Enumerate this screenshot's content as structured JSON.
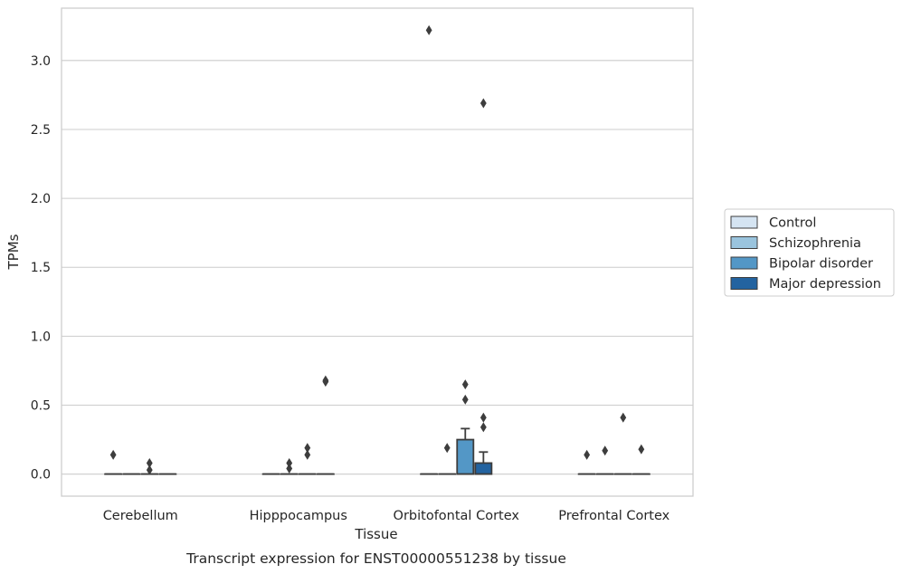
{
  "chart_data": {
    "type": "box",
    "title": "",
    "caption": "Transcript expression for ENST00000551238 by tissue",
    "xlabel": "Tissue",
    "ylabel": "TPMs",
    "ylim": [
      -0.16,
      3.38
    ],
    "yticks": [
      0.0,
      0.5,
      1.0,
      1.5,
      2.0,
      2.5,
      3.0
    ],
    "ytick_labels": [
      "0.0",
      "0.5",
      "1.0",
      "1.5",
      "2.0",
      "2.5",
      "3.0"
    ],
    "grid": "horizontal",
    "legend_position": "right",
    "categories": [
      "Cerebellum",
      "Hipppocampus",
      "Orbitofontal Cortex",
      "Prefrontal Cortex"
    ],
    "series": [
      {
        "name": "Control",
        "color": "#d5e4f2",
        "boxes": [
          {
            "q1": 0,
            "median": 0,
            "q3": 0,
            "whisker_low": 0,
            "whisker_high": 0,
            "outliers": [
              0.14
            ]
          },
          {
            "q1": 0,
            "median": 0,
            "q3": 0,
            "whisker_low": 0,
            "whisker_high": 0,
            "outliers": []
          },
          {
            "q1": 0,
            "median": 0,
            "q3": 0,
            "whisker_low": 0,
            "whisker_high": 0,
            "outliers": [
              3.22
            ]
          },
          {
            "q1": 0,
            "median": 0,
            "q3": 0,
            "whisker_low": 0,
            "whisker_high": 0,
            "outliers": [
              0.14
            ]
          }
        ]
      },
      {
        "name": "Schizophrenia",
        "color": "#9ac4de",
        "boxes": [
          {
            "q1": 0,
            "median": 0,
            "q3": 0,
            "whisker_low": 0,
            "whisker_high": 0,
            "outliers": []
          },
          {
            "q1": 0,
            "median": 0,
            "q3": 0,
            "whisker_low": 0,
            "whisker_high": 0,
            "outliers": [
              0.04,
              0.08
            ]
          },
          {
            "q1": 0,
            "median": 0,
            "q3": 0,
            "whisker_low": 0,
            "whisker_high": 0,
            "outliers": [
              0.19
            ]
          },
          {
            "q1": 0,
            "median": 0,
            "q3": 0,
            "whisker_low": 0,
            "whisker_high": 0,
            "outliers": [
              0.17
            ]
          }
        ]
      },
      {
        "name": "Bipolar disorder",
        "color": "#5397c6",
        "boxes": [
          {
            "q1": 0,
            "median": 0,
            "q3": 0,
            "whisker_low": 0,
            "whisker_high": 0,
            "outliers": [
              0.03,
              0.08
            ]
          },
          {
            "q1": 0,
            "median": 0,
            "q3": 0,
            "whisker_low": 0,
            "whisker_high": 0,
            "outliers": [
              0.14,
              0.19
            ]
          },
          {
            "q1": 0,
            "median": 0,
            "q3": 0.25,
            "whisker_low": 0,
            "whisker_high": 0.33,
            "outliers": [
              0.54,
              0.65
            ]
          },
          {
            "q1": 0,
            "median": 0,
            "q3": 0,
            "whisker_low": 0,
            "whisker_high": 0,
            "outliers": [
              0.41
            ]
          }
        ]
      },
      {
        "name": "Major depression",
        "color": "#2363a0",
        "boxes": [
          {
            "q1": 0,
            "median": 0,
            "q3": 0,
            "whisker_low": 0,
            "whisker_high": 0,
            "outliers": []
          },
          {
            "q1": 0,
            "median": 0,
            "q3": 0,
            "whisker_low": 0,
            "whisker_high": 0,
            "outliers": [
              0.67,
              0.68
            ]
          },
          {
            "q1": 0,
            "median": 0,
            "q3": 0.08,
            "whisker_low": 0,
            "whisker_high": 0.16,
            "outliers": [
              0.34,
              0.41,
              2.69
            ]
          },
          {
            "q1": 0,
            "median": 0,
            "q3": 0,
            "whisker_low": 0,
            "whisker_high": 0,
            "outliers": [
              0.18
            ]
          }
        ]
      }
    ]
  }
}
